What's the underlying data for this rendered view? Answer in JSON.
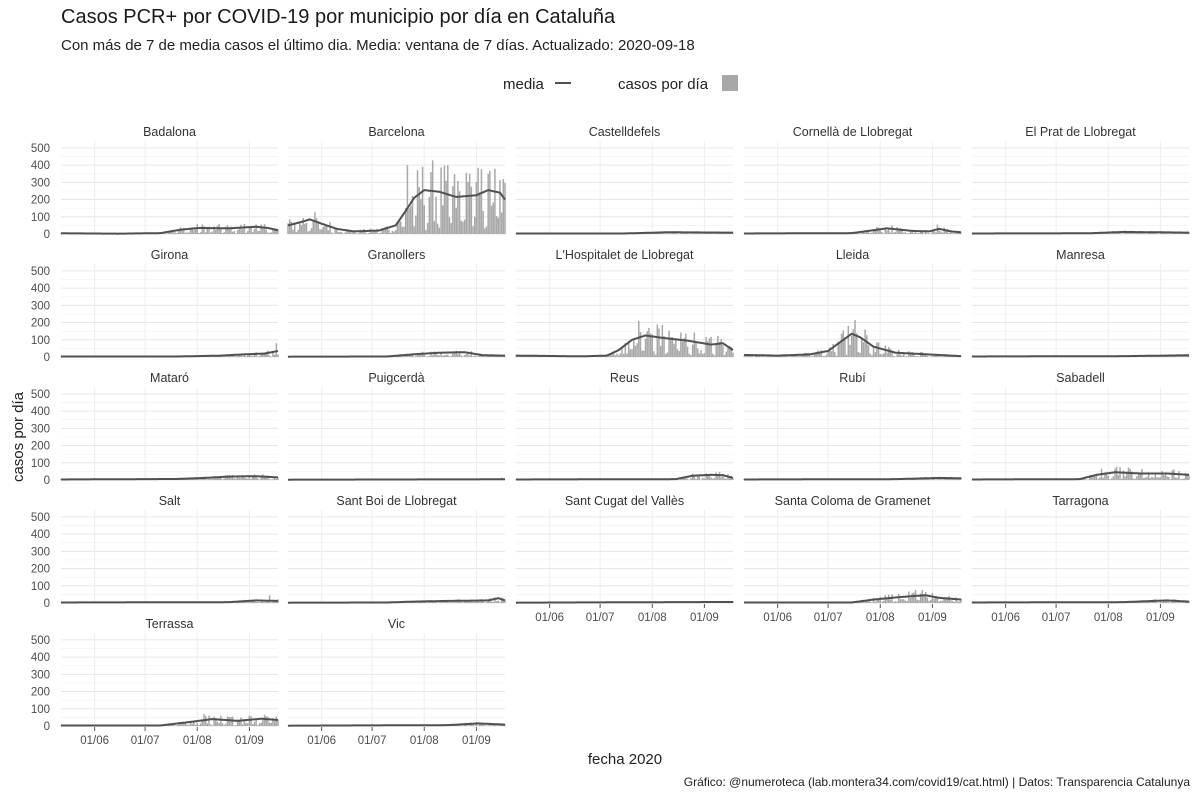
{
  "chart_data": {
    "type": "bar",
    "title": "Casos PCR+ por COVID-19 por municipio por día en Cataluña",
    "subtitle": "Con más de 7 de media casos el último dia. Media: ventana de 7 días. Actualizado: 2020-09-18",
    "caption": "Gráfico: @numeroteca (lab.montera34.com/covid19/cat.html) | Datos: Transparencia Catalunya",
    "xlabel": "fecha 2020",
    "ylabel": "casos por día",
    "x_range": [
      "2020-05-12",
      "2020-09-18"
    ],
    "ylim": [
      0,
      540
    ],
    "y_ticks": [
      0,
      100,
      200,
      300,
      400,
      500
    ],
    "x_ticks": [
      {
        "date": "2020-06-01",
        "label": "01/06"
      },
      {
        "date": "2020-07-01",
        "label": "01/07"
      },
      {
        "date": "2020-08-01",
        "label": "01/08"
      },
      {
        "date": "2020-09-01",
        "label": "01/09"
      }
    ],
    "legend": {
      "position": "top",
      "items": [
        {
          "label": "media",
          "kind": "line",
          "color": "#505050"
        },
        {
          "label": "casos por día",
          "kind": "bar",
          "color": "#a8a8a8"
        }
      ]
    },
    "bar_color": "#a8a8a8",
    "line_color": "#505050",
    "grid": true,
    "facets": [
      {
        "name": "Badalona",
        "avg": [
          [
            "2020-05-12",
            4
          ],
          [
            "2020-06-15",
            2
          ],
          [
            "2020-07-10",
            5
          ],
          [
            "2020-07-22",
            25
          ],
          [
            "2020-08-02",
            35
          ],
          [
            "2020-08-20",
            33
          ],
          [
            "2020-09-05",
            42
          ],
          [
            "2020-09-12",
            35
          ],
          [
            "2020-09-18",
            22
          ]
        ],
        "peaks": [
          [
            "2020-08-05",
            45
          ],
          [
            "2020-09-08",
            55
          ]
        ]
      },
      {
        "name": "Barcelona",
        "avg": [
          [
            "2020-05-12",
            50
          ],
          [
            "2020-05-20",
            70
          ],
          [
            "2020-05-25",
            85
          ],
          [
            "2020-06-01",
            60
          ],
          [
            "2020-06-10",
            30
          ],
          [
            "2020-06-20",
            15
          ],
          [
            "2020-07-05",
            20
          ],
          [
            "2020-07-15",
            50
          ],
          [
            "2020-07-20",
            120
          ],
          [
            "2020-07-26",
            210
          ],
          [
            "2020-08-01",
            255
          ],
          [
            "2020-08-10",
            245
          ],
          [
            "2020-08-20",
            215
          ],
          [
            "2020-09-01",
            225
          ],
          [
            "2020-09-08",
            255
          ],
          [
            "2020-09-15",
            240
          ],
          [
            "2020-09-18",
            200
          ]
        ],
        "peaks": [
          [
            "2020-07-22",
            400
          ],
          [
            "2020-08-05",
            360
          ],
          [
            "2020-08-28",
            350
          ],
          [
            "2020-09-08",
            350
          ]
        ]
      },
      {
        "name": "Castelldefels",
        "avg": [
          [
            "2020-05-12",
            3
          ],
          [
            "2020-07-15",
            3
          ],
          [
            "2020-08-10",
            10
          ],
          [
            "2020-09-18",
            8
          ]
        ],
        "peaks": []
      },
      {
        "name": "Cornellà de Llobregat",
        "avg": [
          [
            "2020-05-12",
            3
          ],
          [
            "2020-07-15",
            5
          ],
          [
            "2020-07-28",
            22
          ],
          [
            "2020-08-05",
            33
          ],
          [
            "2020-08-20",
            18
          ],
          [
            "2020-08-30",
            15
          ],
          [
            "2020-09-05",
            30
          ],
          [
            "2020-09-12",
            15
          ],
          [
            "2020-09-18",
            10
          ]
        ],
        "peaks": [
          [
            "2020-09-04",
            55
          ]
        ]
      },
      {
        "name": "El Prat de Llobregat",
        "avg": [
          [
            "2020-05-12",
            3
          ],
          [
            "2020-07-20",
            4
          ],
          [
            "2020-08-10",
            12
          ],
          [
            "2020-09-18",
            8
          ]
        ],
        "peaks": []
      },
      {
        "name": "Girona",
        "avg": [
          [
            "2020-05-12",
            3
          ],
          [
            "2020-07-20",
            3
          ],
          [
            "2020-08-15",
            8
          ],
          [
            "2020-08-28",
            15
          ],
          [
            "2020-09-10",
            20
          ],
          [
            "2020-09-18",
            35
          ]
        ],
        "peaks": [
          [
            "2020-09-17",
            80
          ]
        ]
      },
      {
        "name": "Granollers",
        "avg": [
          [
            "2020-05-12",
            2
          ],
          [
            "2020-07-10",
            3
          ],
          [
            "2020-07-25",
            15
          ],
          [
            "2020-08-10",
            25
          ],
          [
            "2020-08-25",
            28
          ],
          [
            "2020-09-05",
            10
          ],
          [
            "2020-09-18",
            8
          ]
        ],
        "peaks": []
      },
      {
        "name": "L'Hospitalet de Llobregat",
        "avg": [
          [
            "2020-05-12",
            8
          ],
          [
            "2020-06-20",
            4
          ],
          [
            "2020-07-05",
            8
          ],
          [
            "2020-07-12",
            40
          ],
          [
            "2020-07-20",
            100
          ],
          [
            "2020-07-28",
            125
          ],
          [
            "2020-08-08",
            110
          ],
          [
            "2020-08-22",
            95
          ],
          [
            "2020-09-05",
            72
          ],
          [
            "2020-09-12",
            80
          ],
          [
            "2020-09-18",
            40
          ]
        ],
        "peaks": [
          [
            "2020-07-24",
            210
          ],
          [
            "2020-08-05",
            165
          ]
        ]
      },
      {
        "name": "Lleida",
        "avg": [
          [
            "2020-05-12",
            12
          ],
          [
            "2020-06-01",
            8
          ],
          [
            "2020-06-20",
            15
          ],
          [
            "2020-07-01",
            35
          ],
          [
            "2020-07-08",
            85
          ],
          [
            "2020-07-15",
            135
          ],
          [
            "2020-07-20",
            115
          ],
          [
            "2020-07-28",
            60
          ],
          [
            "2020-08-10",
            25
          ],
          [
            "2020-09-18",
            5
          ]
        ],
        "peaks": [
          [
            "2020-07-13",
            180
          ]
        ]
      },
      {
        "name": "Manresa",
        "avg": [
          [
            "2020-05-12",
            3
          ],
          [
            "2020-08-10",
            5
          ],
          [
            "2020-09-18",
            10
          ]
        ],
        "peaks": []
      },
      {
        "name": "Mataró",
        "avg": [
          [
            "2020-05-12",
            3
          ],
          [
            "2020-07-20",
            6
          ],
          [
            "2020-08-05",
            12
          ],
          [
            "2020-08-20",
            20
          ],
          [
            "2020-09-05",
            22
          ],
          [
            "2020-09-18",
            15
          ]
        ],
        "peaks": [
          [
            "2020-08-28",
            30
          ]
        ]
      },
      {
        "name": "Puigcerdà",
        "avg": [
          [
            "2020-05-12",
            2
          ],
          [
            "2020-09-18",
            4
          ]
        ],
        "peaks": [
          [
            "2020-09-16",
            14
          ]
        ]
      },
      {
        "name": "Reus",
        "avg": [
          [
            "2020-05-12",
            3
          ],
          [
            "2020-08-15",
            5
          ],
          [
            "2020-08-25",
            25
          ],
          [
            "2020-09-05",
            30
          ],
          [
            "2020-09-12",
            28
          ],
          [
            "2020-09-18",
            12
          ]
        ],
        "peaks": [
          [
            "2020-09-02",
            40
          ]
        ]
      },
      {
        "name": "Rubí",
        "avg": [
          [
            "2020-05-12",
            3
          ],
          [
            "2020-08-10",
            5
          ],
          [
            "2020-09-05",
            12
          ],
          [
            "2020-09-18",
            10
          ]
        ],
        "peaks": []
      },
      {
        "name": "Sabadell",
        "avg": [
          [
            "2020-05-12",
            3
          ],
          [
            "2020-07-15",
            5
          ],
          [
            "2020-07-25",
            30
          ],
          [
            "2020-08-05",
            45
          ],
          [
            "2020-08-20",
            38
          ],
          [
            "2020-09-05",
            38
          ],
          [
            "2020-09-18",
            30
          ]
        ],
        "peaks": [
          [
            "2020-07-28",
            65
          ],
          [
            "2020-08-10",
            55
          ]
        ]
      },
      {
        "name": "Salt",
        "avg": [
          [
            "2020-05-12",
            3
          ],
          [
            "2020-08-20",
            5
          ],
          [
            "2020-09-05",
            15
          ],
          [
            "2020-09-18",
            12
          ]
        ],
        "peaks": [
          [
            "2020-09-13",
            45
          ]
        ]
      },
      {
        "name": "Sant Boi de Llobregat",
        "avg": [
          [
            "2020-05-12",
            2
          ],
          [
            "2020-07-10",
            3
          ],
          [
            "2020-07-25",
            8
          ],
          [
            "2020-08-15",
            12
          ],
          [
            "2020-09-08",
            15
          ],
          [
            "2020-09-14",
            28
          ],
          [
            "2020-09-18",
            15
          ]
        ],
        "peaks": []
      },
      {
        "name": "Sant Cugat del Vallès",
        "avg": [
          [
            "2020-05-12",
            2
          ],
          [
            "2020-08-10",
            5
          ],
          [
            "2020-09-18",
            6
          ]
        ],
        "peaks": []
      },
      {
        "name": "Santa Coloma de Gramenet",
        "avg": [
          [
            "2020-05-12",
            3
          ],
          [
            "2020-07-15",
            3
          ],
          [
            "2020-07-28",
            20
          ],
          [
            "2020-08-10",
            32
          ],
          [
            "2020-08-20",
            40
          ],
          [
            "2020-08-28",
            45
          ],
          [
            "2020-09-05",
            30
          ],
          [
            "2020-09-18",
            20
          ]
        ],
        "peaks": [
          [
            "2020-08-22",
            75
          ]
        ]
      },
      {
        "name": "Tarragona",
        "avg": [
          [
            "2020-05-12",
            3
          ],
          [
            "2020-08-10",
            5
          ],
          [
            "2020-09-05",
            15
          ],
          [
            "2020-09-18",
            8
          ]
        ],
        "peaks": []
      },
      {
        "name": "Terrassa",
        "avg": [
          [
            "2020-05-12",
            3
          ],
          [
            "2020-07-10",
            3
          ],
          [
            "2020-07-25",
            20
          ],
          [
            "2020-08-10",
            40
          ],
          [
            "2020-08-25",
            30
          ],
          [
            "2020-09-08",
            42
          ],
          [
            "2020-09-18",
            35
          ]
        ],
        "peaks": [
          [
            "2020-08-05",
            70
          ],
          [
            "2020-09-10",
            65
          ]
        ]
      },
      {
        "name": "Vic",
        "avg": [
          [
            "2020-05-12",
            2
          ],
          [
            "2020-08-15",
            5
          ],
          [
            "2020-09-02",
            15
          ],
          [
            "2020-09-18",
            8
          ]
        ],
        "peaks": []
      }
    ]
  }
}
